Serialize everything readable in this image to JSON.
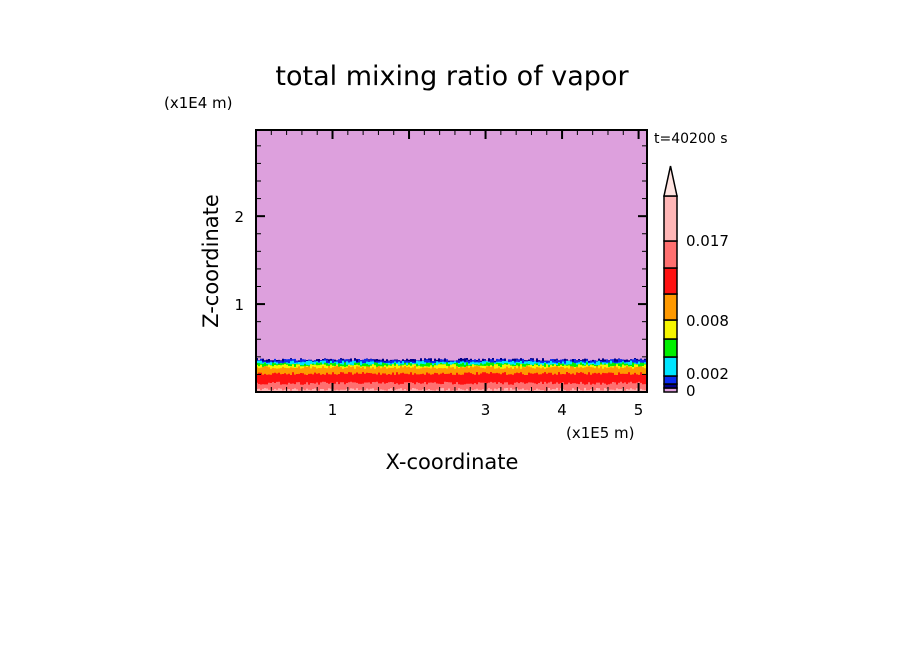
{
  "chart_data": {
    "type": "heatmap",
    "title": "total mixing ratio of vapor",
    "xlabel": "X-coordinate",
    "ylabel": "Z-coordinate",
    "x_unit": "(x1E5 m)",
    "y_unit": "(x1E4 m)",
    "time_label": "t=40200 s",
    "xlim": [
      0,
      5.11
    ],
    "ylim": [
      0,
      2.98
    ],
    "x_ticks": [
      "1",
      "2",
      "3",
      "4",
      "5"
    ],
    "y_ticks": [
      "1",
      "2"
    ],
    "colorbar": {
      "levels": [
        0,
        0.0005,
        0.001,
        0.002,
        0.004,
        0.006,
        0.008,
        0.011,
        0.014,
        0.017,
        0.022
      ],
      "colors": [
        "#dda0dd",
        "#00008b",
        "#0a2cf0",
        "#00e5ff",
        "#00f000",
        "#f5f500",
        "#ff9900",
        "#ff1111",
        "#ff7070",
        "#ffb6b6",
        "#ffe4e1"
      ],
      "labels": [
        "0",
        "0.002",
        "0.008",
        "0.017"
      ],
      "extend": "max"
    },
    "layers": [
      {
        "color": "#ffb6b6",
        "z_top": 0.03
      },
      {
        "color": "#ff7070",
        "z_top": 0.1
      },
      {
        "color": "#ff1111",
        "z_top": 0.21
      },
      {
        "color": "#ff9900",
        "z_top": 0.28
      },
      {
        "color": "#f5f500",
        "z_top": 0.3
      },
      {
        "color": "#00f000",
        "z_top": 0.32
      },
      {
        "color": "#00e5ff",
        "z_top": 0.34
      },
      {
        "color": "#0a2cf0",
        "z_top": 0.36
      },
      {
        "color": "#00008b",
        "z_top": 0.37
      },
      {
        "color": "#dda0dd",
        "z_top": 2.98
      }
    ]
  }
}
